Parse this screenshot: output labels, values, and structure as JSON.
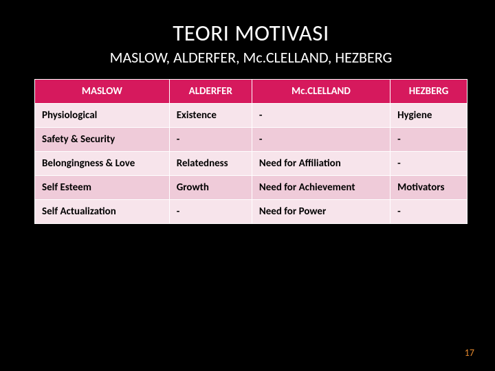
{
  "slide": {
    "title": "TEORI  MOTIVASI",
    "subtitle": "MASLOW,  ALDERFER,  Mc.CLELLAND,  HEZBERG",
    "page_number": "17"
  },
  "table": {
    "type": "table",
    "header_bg": "#d6195d",
    "header_text_color": "#ffffff",
    "row_odd_bg": "#f7e4eb",
    "row_even_bg": "#efcbd9",
    "cell_text_color": "#000000",
    "border_color": "#ffffff",
    "font_size": 15,
    "columns": [
      {
        "label": "MASLOW",
        "width": "25%"
      },
      {
        "label": "ALDERFER",
        "width": "23%"
      },
      {
        "label": "Mc.CLELLAND",
        "width": "27%"
      },
      {
        "label": "HEZBERG",
        "width": "25%"
      }
    ],
    "rows": [
      [
        "Physiological",
        "Existence",
        "-",
        "Hygiene"
      ],
      [
        "Safety & Security",
        "-",
        "-",
        "-"
      ],
      [
        "Belongingness & Love",
        "Relatedness",
        "Need for Affiliation",
        "-"
      ],
      [
        "Self Esteem",
        "Growth",
        "Need for Achievement",
        "Motivators"
      ],
      [
        "Self Actualization",
        "-",
        "Need for Power",
        "-"
      ]
    ]
  },
  "colors": {
    "background": "#000000",
    "title_color": "#ffffff",
    "page_num_color": "#e68a2e"
  }
}
